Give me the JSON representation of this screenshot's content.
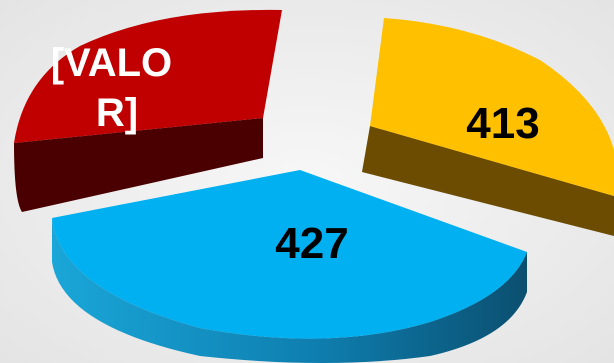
{
  "chart_data": {
    "type": "pie",
    "style": "3d-exploded",
    "grid": false,
    "legend": "none",
    "slices": [
      {
        "label": "[VALOR]",
        "label_lines": [
          "[VALO",
          "R]"
        ],
        "value": null,
        "color": "#c00000",
        "label_color": "#ffffff"
      },
      {
        "label": "413",
        "label_lines": [
          "413"
        ],
        "value": 413,
        "color": "#ffc000",
        "label_color": "#000000"
      },
      {
        "label": "427",
        "label_lines": [
          "427"
        ],
        "value": 427,
        "color": "#00b0f0",
        "label_color": "#000000"
      }
    ]
  }
}
